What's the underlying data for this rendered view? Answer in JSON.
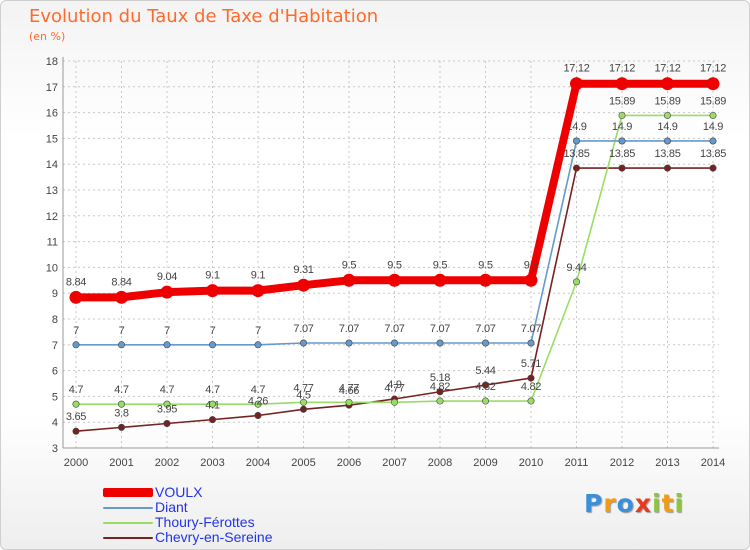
{
  "title": "Evolution du Taux de Taxe d'Habitation",
  "subtitle": "(en %)",
  "logo": {
    "letters": [
      "P",
      "r",
      "o",
      "x",
      "i",
      "t",
      "i"
    ],
    "colors": [
      "#3b8fd8",
      "#f39c12",
      "#3b8fd8",
      "#e63a1f",
      "#8cc63f",
      "#f39c12",
      "#8cc63f"
    ]
  },
  "chart_data": {
    "type": "line",
    "x": [
      "2000",
      "2001",
      "2002",
      "2003",
      "2004",
      "2005",
      "2006",
      "2007",
      "2008",
      "2009",
      "2010",
      "2011",
      "2012",
      "2013",
      "2014"
    ],
    "ylim": [
      3,
      18
    ],
    "yticks": [
      "3",
      "4",
      "5",
      "6",
      "7",
      "8",
      "9",
      "10",
      "11",
      "12",
      "13",
      "14",
      "15",
      "16",
      "17",
      "18"
    ],
    "grid": true,
    "legend_position": "bottom-left",
    "series": [
      {
        "name": "VOULX",
        "color": "#ee0000",
        "values": [
          8.84,
          8.84,
          9.04,
          9.1,
          9.1,
          9.31,
          9.5,
          9.5,
          9.5,
          9.5,
          9.5,
          17.12,
          17.12,
          17.12,
          17.12
        ],
        "labels": [
          "8.84",
          "8.84",
          "9.04",
          "9.1",
          "9.1",
          "9.31",
          "9.5",
          "9.5",
          "9.5",
          "9.5",
          "9.5",
          "17.12",
          "17.12",
          "17.12",
          "17.12"
        ]
      },
      {
        "name": "Diant",
        "color": "#6699cc",
        "values": [
          7,
          7,
          7,
          7,
          7,
          7.07,
          7.07,
          7.07,
          7.07,
          7.07,
          7.07,
          14.9,
          14.9,
          14.9,
          14.9
        ],
        "labels": [
          "7",
          "7",
          "7",
          "7",
          "7",
          "7.07",
          "7.07",
          "7.07",
          "7.07",
          "7.07",
          "7.07",
          "14.9",
          "14.9",
          "14.9",
          "14.9"
        ]
      },
      {
        "name": "Thoury-Férottes",
        "color": "#99dd66",
        "values": [
          4.7,
          4.7,
          4.7,
          4.7,
          4.7,
          4.77,
          4.77,
          4.77,
          4.82,
          4.82,
          4.82,
          9.44,
          15.89,
          15.89,
          15.89
        ],
        "labels": [
          "4.7",
          "4.7",
          "4.7",
          "4.7",
          "4.7",
          "4.77",
          "4.77",
          "4.77",
          "4.82",
          "4.82",
          "4.82",
          "9.44",
          "15.89",
          "15.89",
          "15.89"
        ]
      },
      {
        "name": "Chevry-en-Sereine",
        "color": "#772222",
        "values": [
          3.65,
          3.8,
          3.95,
          4.1,
          4.26,
          4.5,
          4.66,
          4.9,
          5.18,
          5.44,
          5.71,
          13.85,
          13.85,
          13.85,
          13.85
        ],
        "labels": [
          "3.65",
          "3.8",
          "3.95",
          "4.1",
          "4.26",
          "4.5",
          "4.66",
          "4.9",
          "5.18",
          "5.44",
          "5.71",
          "13.85",
          "13.85",
          "13.85",
          "13.85"
        ]
      }
    ]
  }
}
